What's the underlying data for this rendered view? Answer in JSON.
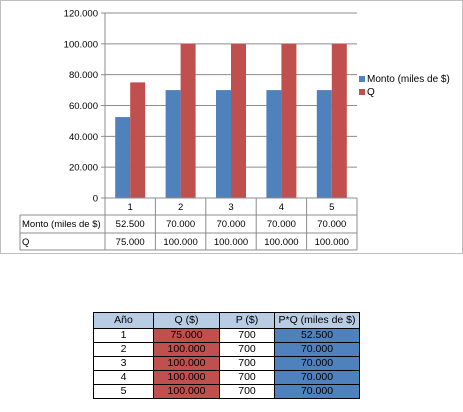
{
  "chart_data": {
    "type": "bar",
    "categories": [
      "1",
      "2",
      "3",
      "4",
      "5"
    ],
    "series": [
      {
        "name": "Monto (miles de $)",
        "values": [
          52500,
          70000,
          70000,
          70000,
          70000
        ],
        "labels": [
          "52.500",
          "70.000",
          "70.000",
          "70.000",
          "70.000"
        ],
        "color": "#4f81bd"
      },
      {
        "name": "Q",
        "values": [
          75000,
          100000,
          100000,
          100000,
          100000
        ],
        "labels": [
          "75.000",
          "100.000",
          "100.000",
          "100.000",
          "100.000"
        ],
        "color": "#c0504d"
      }
    ],
    "ylim": [
      0,
      120000
    ],
    "yticks": [
      0,
      20000,
      40000,
      60000,
      80000,
      100000,
      120000
    ],
    "ytick_labels": [
      "0",
      "20.000",
      "40.000",
      "60.000",
      "80.000",
      "100.000",
      "120.000"
    ],
    "grid": true,
    "legend": "right",
    "data_table": true
  },
  "table": {
    "headers": [
      "Año",
      "Q  ($)",
      "P ($)",
      "P*Q (miles de $)"
    ],
    "rows": [
      [
        "1",
        "75.000",
        "700",
        "52.500"
      ],
      [
        "2",
        "100.000",
        "700",
        "70.000"
      ],
      [
        "3",
        "100.000",
        "700",
        "70.000"
      ],
      [
        "4",
        "100.000",
        "700",
        "70.000"
      ],
      [
        "5",
        "100.000",
        "700",
        "70.000"
      ]
    ],
    "q_color": "#c0504d",
    "pq_color": "#4f81bd",
    "header_color": "#b8cce4"
  }
}
